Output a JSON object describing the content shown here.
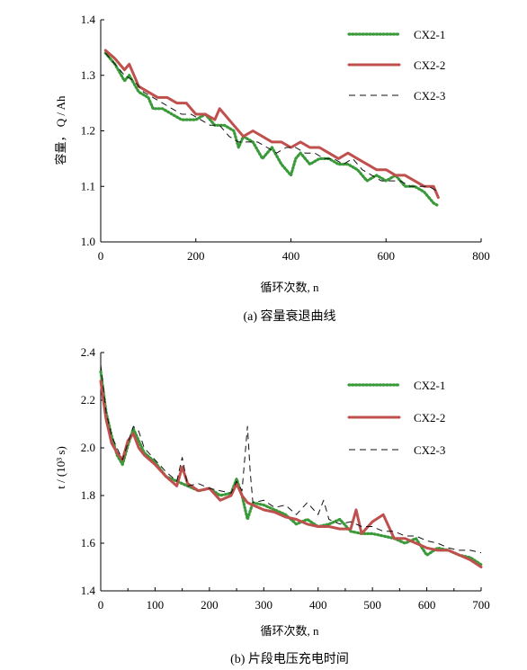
{
  "chart_data": [
    {
      "type": "line",
      "caption": "(a)  容量衰退曲线",
      "xlabel": "循环次数, n",
      "ylabel": "容量， Q / Ah",
      "xlim": [
        0,
        800
      ],
      "ylim": [
        1.0,
        1.4
      ],
      "xticks": [
        "0",
        "200",
        "400",
        "600",
        "800"
      ],
      "yticks": [
        "1.0",
        "1.1",
        "1.2",
        "1.3",
        "1.4"
      ],
      "legend_position": "top-right",
      "series": [
        {
          "name": "CX2-1",
          "style": "dotted",
          "color": "#3a9a3a",
          "x": [
            10,
            30,
            50,
            60,
            80,
            100,
            110,
            130,
            150,
            170,
            180,
            200,
            220,
            240,
            260,
            280,
            290,
            300,
            320,
            340,
            350,
            360,
            380,
            400,
            410,
            420,
            440,
            460,
            480,
            500,
            520,
            540,
            560,
            580,
            600,
            620,
            640,
            660,
            680,
            700,
            710
          ],
          "y": [
            1.34,
            1.32,
            1.29,
            1.3,
            1.27,
            1.26,
            1.24,
            1.24,
            1.23,
            1.22,
            1.22,
            1.22,
            1.23,
            1.21,
            1.21,
            1.2,
            1.17,
            1.19,
            1.18,
            1.15,
            1.16,
            1.17,
            1.14,
            1.12,
            1.15,
            1.16,
            1.14,
            1.15,
            1.15,
            1.14,
            1.14,
            1.13,
            1.11,
            1.12,
            1.11,
            1.12,
            1.1,
            1.1,
            1.09,
            1.07,
            1.065
          ]
        },
        {
          "name": "CX2-2",
          "style": "solid-thick",
          "color": "#c0504d",
          "x": [
            10,
            30,
            50,
            60,
            70,
            80,
            100,
            120,
            140,
            160,
            180,
            200,
            220,
            240,
            250,
            260,
            280,
            300,
            320,
            340,
            360,
            380,
            400,
            420,
            440,
            460,
            480,
            500,
            520,
            540,
            560,
            580,
            600,
            620,
            640,
            660,
            680,
            700,
            710
          ],
          "y": [
            1.345,
            1.33,
            1.31,
            1.32,
            1.3,
            1.28,
            1.27,
            1.26,
            1.26,
            1.25,
            1.25,
            1.23,
            1.23,
            1.22,
            1.24,
            1.23,
            1.21,
            1.19,
            1.2,
            1.19,
            1.18,
            1.18,
            1.17,
            1.18,
            1.17,
            1.17,
            1.16,
            1.15,
            1.16,
            1.15,
            1.14,
            1.13,
            1.13,
            1.12,
            1.12,
            1.11,
            1.1,
            1.1,
            1.08
          ]
        },
        {
          "name": "CX2-3",
          "style": "dashed",
          "color": "#111111",
          "x": [
            10,
            30,
            50,
            70,
            90,
            110,
            130,
            150,
            170,
            190,
            210,
            230,
            250,
            270,
            290,
            310,
            330,
            350,
            370,
            390,
            410,
            430,
            450,
            470,
            490,
            510,
            530,
            550,
            570,
            590,
            610,
            630,
            650,
            670,
            690,
            710
          ],
          "y": [
            1.34,
            1.32,
            1.3,
            1.29,
            1.27,
            1.26,
            1.25,
            1.24,
            1.23,
            1.23,
            1.22,
            1.21,
            1.21,
            1.19,
            1.18,
            1.18,
            1.18,
            1.17,
            1.16,
            1.17,
            1.17,
            1.16,
            1.16,
            1.15,
            1.15,
            1.14,
            1.15,
            1.13,
            1.12,
            1.11,
            1.11,
            1.11,
            1.1,
            1.1,
            1.1,
            1.09
          ]
        }
      ]
    },
    {
      "type": "line",
      "caption": "(b)  片段电压充电时间",
      "xlabel": "循环次数, n",
      "ylabel": "t / (10³ s)",
      "xlim": [
        0,
        700
      ],
      "ylim": [
        1.4,
        2.4
      ],
      "xticks": [
        "0",
        "100",
        "200",
        "300",
        "400",
        "500",
        "600",
        "700"
      ],
      "yticks": [
        "1.4",
        "1.6",
        "1.8",
        "2.0",
        "2.2",
        "2.4"
      ],
      "legend_position": "top-right",
      "series": [
        {
          "name": "CX2-1",
          "style": "dotted",
          "color": "#3a9a3a",
          "x": [
            0,
            10,
            20,
            30,
            40,
            50,
            60,
            70,
            80,
            100,
            120,
            140,
            160,
            180,
            200,
            220,
            240,
            250,
            260,
            270,
            280,
            300,
            320,
            340,
            360,
            380,
            400,
            420,
            440,
            460,
            480,
            500,
            520,
            540,
            560,
            580,
            600,
            620,
            640,
            660,
            680,
            700
          ],
          "y": [
            2.32,
            2.15,
            2.05,
            1.97,
            1.93,
            2.01,
            2.08,
            2.03,
            1.98,
            1.94,
            1.88,
            1.86,
            1.84,
            1.82,
            1.83,
            1.8,
            1.81,
            1.87,
            1.8,
            1.7,
            1.77,
            1.76,
            1.74,
            1.72,
            1.68,
            1.7,
            1.67,
            1.68,
            1.7,
            1.65,
            1.64,
            1.64,
            1.63,
            1.62,
            1.6,
            1.62,
            1.55,
            1.58,
            1.57,
            1.55,
            1.54,
            1.51
          ]
        },
        {
          "name": "CX2-2",
          "style": "solid-thick",
          "color": "#c0504d",
          "x": [
            0,
            10,
            20,
            30,
            40,
            50,
            60,
            70,
            80,
            100,
            120,
            140,
            150,
            160,
            180,
            200,
            220,
            240,
            250,
            260,
            270,
            280,
            300,
            320,
            340,
            360,
            380,
            400,
            420,
            440,
            460,
            470,
            480,
            500,
            520,
            540,
            560,
            580,
            600,
            620,
            640,
            660,
            680,
            700
          ],
          "y": [
            2.28,
            2.12,
            2.02,
            1.98,
            1.95,
            2.03,
            2.06,
            2.0,
            1.97,
            1.93,
            1.88,
            1.84,
            1.92,
            1.85,
            1.82,
            1.83,
            1.78,
            1.8,
            1.85,
            1.8,
            1.77,
            1.76,
            1.74,
            1.73,
            1.71,
            1.7,
            1.68,
            1.67,
            1.67,
            1.66,
            1.66,
            1.74,
            1.64,
            1.69,
            1.72,
            1.62,
            1.62,
            1.6,
            1.58,
            1.57,
            1.57,
            1.55,
            1.53,
            1.5
          ]
        },
        {
          "name": "CX2-3",
          "style": "dashed",
          "color": "#111111",
          "x": [
            0,
            10,
            20,
            30,
            40,
            50,
            60,
            70,
            80,
            100,
            120,
            140,
            150,
            160,
            180,
            200,
            220,
            240,
            250,
            260,
            270,
            275,
            280,
            300,
            320,
            340,
            360,
            380,
            400,
            410,
            420,
            440,
            460,
            480,
            500,
            520,
            540,
            560,
            580,
            600,
            620,
            640,
            660,
            680,
            700
          ],
          "y": [
            2.35,
            2.15,
            2.05,
            2.0,
            1.95,
            2.02,
            2.09,
            2.07,
            2.0,
            1.95,
            1.9,
            1.86,
            1.96,
            1.84,
            1.85,
            1.83,
            1.82,
            1.81,
            1.86,
            1.82,
            2.09,
            1.9,
            1.77,
            1.78,
            1.75,
            1.76,
            1.72,
            1.77,
            1.72,
            1.78,
            1.7,
            1.68,
            1.69,
            1.67,
            1.67,
            1.65,
            1.65,
            1.63,
            1.63,
            1.61,
            1.6,
            1.58,
            1.57,
            1.57,
            1.56
          ]
        }
      ]
    }
  ]
}
